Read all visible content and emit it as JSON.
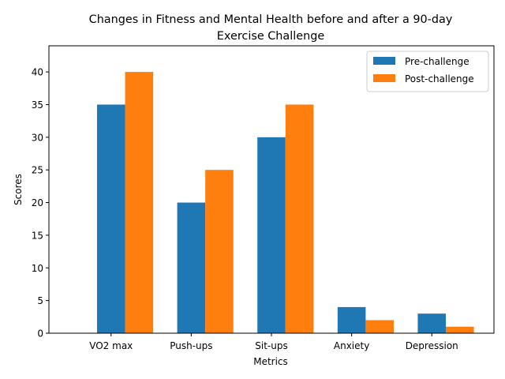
{
  "chart_data": {
    "type": "bar",
    "title_lines": [
      "Changes in Fitness and Mental Health before and after a 90-day",
      "Exercise Challenge"
    ],
    "xlabel": "Metrics",
    "ylabel": "Scores",
    "categories": [
      "VO2 max",
      "Push-ups",
      "Sit-ups",
      "Anxiety",
      "Depression"
    ],
    "series": [
      {
        "name": "Pre-challenge",
        "color": "#1f77b4",
        "values": [
          35,
          20,
          30,
          4,
          3
        ]
      },
      {
        "name": "Post-challenge",
        "color": "#ff7f0e",
        "values": [
          40,
          25,
          35,
          2,
          1
        ]
      }
    ],
    "ylim": [
      0,
      44
    ],
    "yticks": [
      0,
      5,
      10,
      15,
      20,
      25,
      30,
      35,
      40
    ],
    "grid": false,
    "legend_position": "top-right"
  }
}
